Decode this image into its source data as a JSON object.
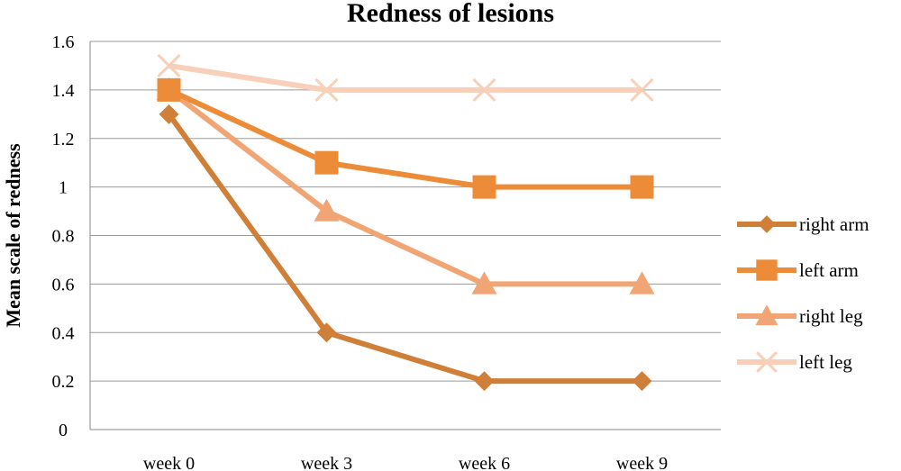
{
  "chart_data": {
    "type": "line",
    "title": "Redness of lesions",
    "xlabel": "",
    "ylabel": "Mean scale of redness",
    "categories": [
      "week 0",
      "week 3",
      "week 6",
      "week 9"
    ],
    "ylim": [
      0,
      1.6
    ],
    "yticks": [
      0,
      0.2,
      0.4,
      0.6,
      0.8,
      1,
      1.2,
      1.4,
      1.6
    ],
    "ytick_labels": [
      "0",
      "0.2",
      "0.4",
      "0.6",
      "0.8",
      "1",
      "1.2",
      "1.4",
      "1.6"
    ],
    "grid": true,
    "legend_position": "right",
    "series": [
      {
        "name": "right arm",
        "values": [
          1.3,
          0.4,
          0.2,
          0.2
        ],
        "color": "#d07f38",
        "marker": "diamond"
      },
      {
        "name": "left arm",
        "values": [
          1.4,
          1.1,
          1.0,
          1.0
        ],
        "color": "#ec8c38",
        "marker": "square"
      },
      {
        "name": "right leg",
        "values": [
          1.4,
          0.9,
          0.6,
          0.6
        ],
        "color": "#f2a574",
        "marker": "triangle"
      },
      {
        "name": "left leg",
        "values": [
          1.5,
          1.4,
          1.4,
          1.4
        ],
        "color": "#f8cfb8",
        "marker": "x"
      }
    ]
  }
}
